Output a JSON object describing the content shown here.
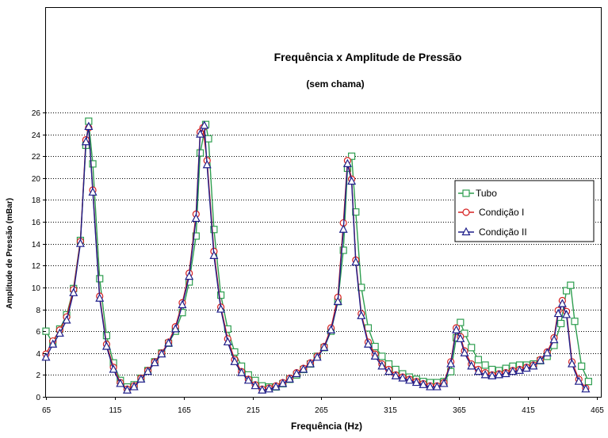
{
  "chart_data": {
    "type": "line",
    "title": "Frequência x Amplitude de Pressão",
    "subtitle": "(sem chama)",
    "xlabel": "Frequência (Hz)",
    "ylabel": "Amplitude de Pressão (mBar)",
    "xlim": [
      65,
      468
    ],
    "ylim": [
      0,
      26
    ],
    "xticks": [
      65,
      115,
      165,
      215,
      265,
      315,
      365,
      415,
      465
    ],
    "yticks": [
      0,
      2,
      4,
      6,
      8,
      10,
      12,
      14,
      16,
      18,
      20,
      22,
      24,
      26
    ],
    "grid": "horizontal-dotted",
    "legend_position": "right",
    "series": [
      {
        "name": "Tubo",
        "color": "#2e9e4f",
        "marker": "square",
        "points": [
          [
            65,
            6.0
          ],
          [
            70,
            4.9
          ],
          [
            75,
            6.2
          ],
          [
            80,
            7.5
          ],
          [
            85,
            9.9
          ],
          [
            90,
            14.3
          ],
          [
            94,
            23.0
          ],
          [
            96,
            25.2
          ],
          [
            99,
            21.3
          ],
          [
            104,
            10.8
          ],
          [
            109,
            5.6
          ],
          [
            114,
            3.1
          ],
          [
            119,
            1.5
          ],
          [
            124,
            0.9
          ],
          [
            129,
            1.1
          ],
          [
            134,
            1.7
          ],
          [
            139,
            2.4
          ],
          [
            144,
            3.2
          ],
          [
            149,
            4.0
          ],
          [
            154,
            4.9
          ],
          [
            159,
            6.0
          ],
          [
            164,
            7.7
          ],
          [
            169,
            10.5
          ],
          [
            174,
            14.7
          ],
          [
            177,
            22.3
          ],
          [
            181,
            24.9
          ],
          [
            183,
            23.6
          ],
          [
            187,
            15.3
          ],
          [
            192,
            9.3
          ],
          [
            197,
            6.2
          ],
          [
            202,
            4.1
          ],
          [
            207,
            2.8
          ],
          [
            212,
            2.0
          ],
          [
            217,
            1.5
          ],
          [
            222,
            1.0
          ],
          [
            227,
            0.9
          ],
          [
            232,
            0.9
          ],
          [
            237,
            1.2
          ],
          [
            242,
            1.6
          ],
          [
            247,
            2.0
          ],
          [
            252,
            2.5
          ],
          [
            257,
            3.0
          ],
          [
            262,
            3.7
          ],
          [
            267,
            4.5
          ],
          [
            272,
            6.0
          ],
          [
            277,
            8.7
          ],
          [
            281,
            13.4
          ],
          [
            284,
            20.9
          ],
          [
            287,
            22.0
          ],
          [
            290,
            16.9
          ],
          [
            294,
            10.0
          ],
          [
            299,
            6.3
          ],
          [
            304,
            4.6
          ],
          [
            309,
            3.7
          ],
          [
            314,
            3.0
          ],
          [
            319,
            2.5
          ],
          [
            324,
            2.1
          ],
          [
            329,
            1.8
          ],
          [
            334,
            1.6
          ],
          [
            339,
            1.4
          ],
          [
            344,
            1.3
          ],
          [
            349,
            1.3
          ],
          [
            354,
            1.4
          ],
          [
            359,
            2.3
          ],
          [
            363,
            5.4
          ],
          [
            366,
            6.8
          ],
          [
            369,
            5.8
          ],
          [
            374,
            4.5
          ],
          [
            379,
            3.4
          ],
          [
            384,
            2.9
          ],
          [
            389,
            2.5
          ],
          [
            394,
            2.4
          ],
          [
            399,
            2.6
          ],
          [
            404,
            2.8
          ],
          [
            409,
            2.9
          ],
          [
            414,
            2.9
          ],
          [
            419,
            3.0
          ],
          [
            424,
            3.3
          ],
          [
            429,
            3.7
          ],
          [
            434,
            4.7
          ],
          [
            439,
            6.7
          ],
          [
            443,
            9.7
          ],
          [
            446,
            10.2
          ],
          [
            449,
            6.9
          ],
          [
            454,
            2.8
          ],
          [
            459,
            1.4
          ]
        ]
      },
      {
        "name": "Condição I",
        "color": "#d62020",
        "marker": "circle",
        "points": [
          [
            65,
            3.9
          ],
          [
            70,
            5.1
          ],
          [
            75,
            6.1
          ],
          [
            80,
            7.3
          ],
          [
            85,
            9.8
          ],
          [
            90,
            14.2
          ],
          [
            94,
            23.5
          ],
          [
            96,
            24.6
          ],
          [
            99,
            18.9
          ],
          [
            104,
            9.2
          ],
          [
            109,
            4.8
          ],
          [
            114,
            2.7
          ],
          [
            119,
            1.3
          ],
          [
            124,
            0.7
          ],
          [
            129,
            1.0
          ],
          [
            134,
            1.7
          ],
          [
            139,
            2.4
          ],
          [
            144,
            3.2
          ],
          [
            149,
            4.0
          ],
          [
            154,
            5.0
          ],
          [
            159,
            6.4
          ],
          [
            164,
            8.6
          ],
          [
            169,
            11.3
          ],
          [
            174,
            16.7
          ],
          [
            177,
            24.2
          ],
          [
            179,
            24.6
          ],
          [
            182,
            21.6
          ],
          [
            187,
            13.3
          ],
          [
            192,
            8.2
          ],
          [
            197,
            5.3
          ],
          [
            202,
            3.4
          ],
          [
            207,
            2.3
          ],
          [
            212,
            1.6
          ],
          [
            217,
            1.1
          ],
          [
            222,
            0.7
          ],
          [
            227,
            0.8
          ],
          [
            232,
            1.0
          ],
          [
            237,
            1.3
          ],
          [
            242,
            1.7
          ],
          [
            247,
            2.2
          ],
          [
            252,
            2.6
          ],
          [
            257,
            3.1
          ],
          [
            262,
            3.7
          ],
          [
            267,
            4.6
          ],
          [
            272,
            6.3
          ],
          [
            277,
            9.1
          ],
          [
            281,
            15.9
          ],
          [
            284,
            21.6
          ],
          [
            287,
            19.9
          ],
          [
            290,
            12.5
          ],
          [
            294,
            7.6
          ],
          [
            299,
            5.0
          ],
          [
            304,
            3.9
          ],
          [
            309,
            3.0
          ],
          [
            314,
            2.5
          ],
          [
            319,
            2.0
          ],
          [
            324,
            1.8
          ],
          [
            329,
            1.6
          ],
          [
            334,
            1.4
          ],
          [
            339,
            1.2
          ],
          [
            344,
            1.0
          ],
          [
            349,
            1.0
          ],
          [
            354,
            1.3
          ],
          [
            359,
            3.2
          ],
          [
            363,
            6.3
          ],
          [
            366,
            5.5
          ],
          [
            369,
            4.2
          ],
          [
            374,
            3.0
          ],
          [
            379,
            2.5
          ],
          [
            384,
            2.2
          ],
          [
            389,
            2.0
          ],
          [
            394,
            2.1
          ],
          [
            399,
            2.2
          ],
          [
            404,
            2.4
          ],
          [
            409,
            2.5
          ],
          [
            414,
            2.7
          ],
          [
            419,
            2.9
          ],
          [
            424,
            3.4
          ],
          [
            429,
            4.1
          ],
          [
            434,
            5.4
          ],
          [
            437,
            7.9
          ],
          [
            440,
            8.8
          ],
          [
            443,
            7.8
          ],
          [
            447,
            3.2
          ],
          [
            452,
            1.6
          ],
          [
            457,
            0.8
          ]
        ]
      },
      {
        "name": "Condição II",
        "color": "#1f1f8a",
        "marker": "triangle",
        "points": [
          [
            65,
            3.6
          ],
          [
            70,
            4.8
          ],
          [
            75,
            5.8
          ],
          [
            80,
            7.0
          ],
          [
            85,
            9.5
          ],
          [
            90,
            14.0
          ],
          [
            94,
            23.3
          ],
          [
            96,
            24.7
          ],
          [
            99,
            18.7
          ],
          [
            104,
            9.0
          ],
          [
            109,
            4.6
          ],
          [
            114,
            2.5
          ],
          [
            119,
            1.2
          ],
          [
            124,
            0.6
          ],
          [
            129,
            0.9
          ],
          [
            134,
            1.6
          ],
          [
            139,
            2.3
          ],
          [
            144,
            3.1
          ],
          [
            149,
            3.9
          ],
          [
            154,
            4.9
          ],
          [
            159,
            6.2
          ],
          [
            164,
            8.4
          ],
          [
            169,
            11.0
          ],
          [
            174,
            16.3
          ],
          [
            177,
            24.0
          ],
          [
            180,
            24.8
          ],
          [
            182,
            21.2
          ],
          [
            187,
            12.9
          ],
          [
            192,
            8.0
          ],
          [
            197,
            5.0
          ],
          [
            202,
            3.2
          ],
          [
            207,
            2.2
          ],
          [
            212,
            1.5
          ],
          [
            217,
            1.0
          ],
          [
            222,
            0.6
          ],
          [
            227,
            0.7
          ],
          [
            232,
            0.9
          ],
          [
            237,
            1.2
          ],
          [
            242,
            1.6
          ],
          [
            247,
            2.1
          ],
          [
            252,
            2.5
          ],
          [
            257,
            3.0
          ],
          [
            262,
            3.6
          ],
          [
            267,
            4.5
          ],
          [
            272,
            6.1
          ],
          [
            277,
            8.7
          ],
          [
            281,
            15.3
          ],
          [
            284,
            21.3
          ],
          [
            287,
            19.7
          ],
          [
            290,
            12.3
          ],
          [
            294,
            7.4
          ],
          [
            299,
            4.8
          ],
          [
            304,
            3.7
          ],
          [
            309,
            2.8
          ],
          [
            314,
            2.3
          ],
          [
            319,
            1.9
          ],
          [
            324,
            1.7
          ],
          [
            329,
            1.5
          ],
          [
            334,
            1.3
          ],
          [
            339,
            1.1
          ],
          [
            344,
            0.9
          ],
          [
            349,
            0.9
          ],
          [
            354,
            1.2
          ],
          [
            359,
            3.0
          ],
          [
            363,
            6.1
          ],
          [
            366,
            5.3
          ],
          [
            369,
            4.0
          ],
          [
            374,
            2.8
          ],
          [
            379,
            2.3
          ],
          [
            384,
            2.0
          ],
          [
            389,
            1.9
          ],
          [
            394,
            2.0
          ],
          [
            399,
            2.1
          ],
          [
            404,
            2.3
          ],
          [
            409,
            2.4
          ],
          [
            414,
            2.6
          ],
          [
            419,
            2.8
          ],
          [
            424,
            3.3
          ],
          [
            429,
            4.0
          ],
          [
            434,
            5.2
          ],
          [
            437,
            7.6
          ],
          [
            440,
            8.5
          ],
          [
            443,
            7.5
          ],
          [
            447,
            3.0
          ],
          [
            452,
            1.4
          ],
          [
            457,
            0.7
          ]
        ]
      }
    ]
  }
}
